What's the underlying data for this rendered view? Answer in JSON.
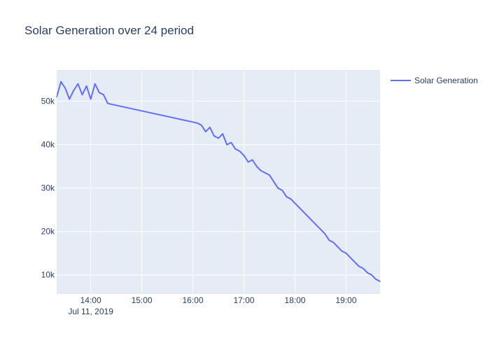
{
  "chart_data": {
    "type": "line",
    "title": "Solar Generation over 24 period",
    "xlabel": "",
    "ylabel": "",
    "x_range": [
      "2019-07-11 13:20",
      "2019-07-11 19:40"
    ],
    "ylim": [
      5600,
      57200
    ],
    "grid": true,
    "legend_placement": "top-right",
    "x_ticks": [
      {
        "t": "2019-07-11 14:00",
        "label": "14:00"
      },
      {
        "t": "2019-07-11 15:00",
        "label": "15:00"
      },
      {
        "t": "2019-07-11 16:00",
        "label": "16:00"
      },
      {
        "t": "2019-07-11 17:00",
        "label": "17:00"
      },
      {
        "t": "2019-07-11 18:00",
        "label": "18:00"
      },
      {
        "t": "2019-07-11 19:00",
        "label": "19:00"
      }
    ],
    "x_date_label": "Jul 11, 2019",
    "y_ticks": [
      {
        "v": 10000,
        "label": "10k"
      },
      {
        "v": 20000,
        "label": "20k"
      },
      {
        "v": 30000,
        "label": "30k"
      },
      {
        "v": 40000,
        "label": "40k"
      },
      {
        "v": 50000,
        "label": "50k"
      }
    ],
    "colors": {
      "series": "#636efa",
      "plot_bg": "#e5ecf6",
      "grid": "#ffffff",
      "text": "#2a3f5f"
    },
    "series": [
      {
        "name": "Solar Generation",
        "x": [
          "2019-07-11 13:20",
          "2019-07-11 13:25",
          "2019-07-11 13:30",
          "2019-07-11 13:35",
          "2019-07-11 13:40",
          "2019-07-11 13:45",
          "2019-07-11 13:50",
          "2019-07-11 13:55",
          "2019-07-11 14:00",
          "2019-07-11 14:05",
          "2019-07-11 14:10",
          "2019-07-11 14:15",
          "2019-07-11 14:20",
          "2019-07-11 16:05",
          "2019-07-11 16:10",
          "2019-07-11 16:15",
          "2019-07-11 16:20",
          "2019-07-11 16:25",
          "2019-07-11 16:30",
          "2019-07-11 16:35",
          "2019-07-11 16:40",
          "2019-07-11 16:45",
          "2019-07-11 16:50",
          "2019-07-11 16:55",
          "2019-07-11 17:00",
          "2019-07-11 17:05",
          "2019-07-11 17:10",
          "2019-07-11 17:15",
          "2019-07-11 17:20",
          "2019-07-11 17:25",
          "2019-07-11 17:30",
          "2019-07-11 17:35",
          "2019-07-11 17:40",
          "2019-07-11 17:45",
          "2019-07-11 17:50",
          "2019-07-11 17:55",
          "2019-07-11 18:00",
          "2019-07-11 18:05",
          "2019-07-11 18:10",
          "2019-07-11 18:15",
          "2019-07-11 18:20",
          "2019-07-11 18:25",
          "2019-07-11 18:30",
          "2019-07-11 18:35",
          "2019-07-11 18:40",
          "2019-07-11 18:45",
          "2019-07-11 18:50",
          "2019-07-11 18:55",
          "2019-07-11 19:00",
          "2019-07-11 19:05",
          "2019-07-11 19:10",
          "2019-07-11 19:15",
          "2019-07-11 19:20",
          "2019-07-11 19:25",
          "2019-07-11 19:30",
          "2019-07-11 19:35",
          "2019-07-11 19:40"
        ],
        "y": [
          51000,
          54500,
          53000,
          50500,
          52500,
          54000,
          51500,
          53500,
          50500,
          54000,
          52000,
          51500,
          49500,
          45000,
          44500,
          43000,
          44000,
          42000,
          41500,
          42500,
          40000,
          40500,
          39000,
          38500,
          37500,
          36000,
          36500,
          35000,
          34000,
          33500,
          33000,
          31500,
          30000,
          29500,
          28000,
          27500,
          26500,
          25500,
          24500,
          23500,
          22500,
          21500,
          20500,
          19500,
          18000,
          17500,
          16500,
          15500,
          15000,
          14000,
          13000,
          12000,
          11500,
          10500,
          10000,
          9000,
          8500
        ]
      }
    ]
  }
}
